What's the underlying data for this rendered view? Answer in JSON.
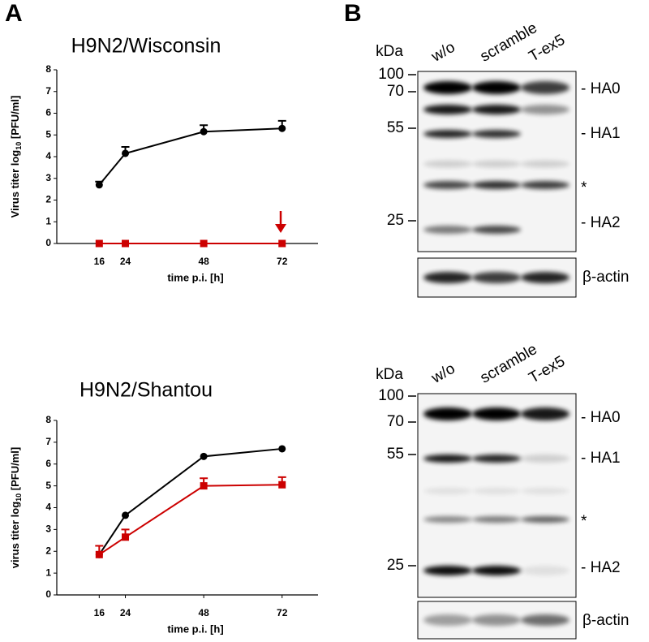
{
  "panels": [
    "A",
    "B"
  ],
  "chart_data": [
    {
      "type": "line",
      "title": "H9N2/Wisconsin",
      "ylabel": [
        "Virus titer log",
        "10",
        " [PFU/ml]"
      ],
      "xlabel": "time p.i. [h]",
      "x": [
        16,
        24,
        48,
        72
      ],
      "xlim": [
        3,
        83
      ],
      "xticks": [
        16,
        24,
        48,
        72
      ],
      "ylim": [
        0,
        8
      ],
      "yticks": [
        0,
        1,
        2,
        3,
        4,
        5,
        6,
        7,
        8
      ],
      "series": [
        {
          "color": "#000000",
          "marker": "circle",
          "values": [
            2.7,
            4.15,
            5.15,
            5.3
          ],
          "errors": [
            0.15,
            0.3,
            0.3,
            0.35
          ]
        },
        {
          "color": "#cc0000",
          "marker": "square",
          "values": [
            0,
            0,
            0,
            0
          ]
        }
      ]
    },
    {
      "type": "line",
      "title": "H9N2/Shantou",
      "ylabel": [
        "virus titer log",
        "10",
        " [PFU/ml]"
      ],
      "xlabel": "time p.i. [h]",
      "x": [
        16,
        24,
        48,
        72
      ],
      "xlim": [
        3,
        83
      ],
      "xticks": [
        16,
        24,
        48,
        72
      ],
      "ylim": [
        0,
        8
      ],
      "yticks": [
        0,
        1,
        2,
        3,
        4,
        5,
        6,
        7,
        8
      ],
      "series": [
        {
          "color": "#000000",
          "marker": "circle",
          "values": [
            1.85,
            3.65,
            6.35,
            6.7
          ]
        },
        {
          "color": "#cc0000",
          "marker": "square",
          "values": [
            1.85,
            2.65,
            5.0,
            5.05
          ],
          "errors": [
            0.4,
            0.35,
            0.35,
            0.35
          ]
        }
      ]
    }
  ],
  "blots": [
    {
      "unit": "kDa",
      "lanes": [
        "w/o",
        "scramble",
        "T-ex5"
      ],
      "markers": [
        "100",
        "70",
        "55",
        "25"
      ],
      "bands": [
        "- HA0",
        "- HA1",
        "*",
        "- HA2"
      ],
      "loading": "β-actin"
    },
    {
      "unit": "kDa",
      "lanes": [
        "w/o",
        "scramble",
        "T-ex5"
      ],
      "markers": [
        "100",
        "70",
        "55",
        "25"
      ],
      "bands": [
        "- HA0",
        "- HA1",
        "*",
        "- HA2"
      ],
      "loading": "β-actin"
    }
  ]
}
